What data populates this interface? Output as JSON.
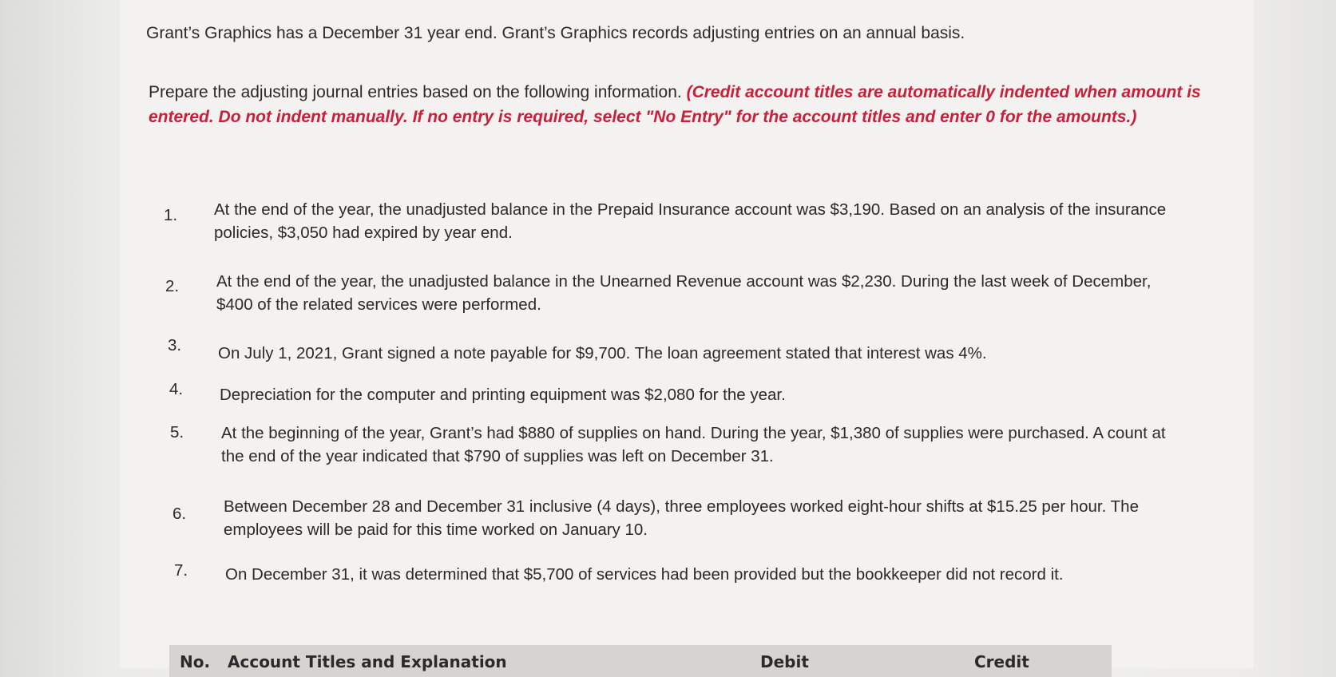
{
  "intro": "Grant’s Graphics has a December 31 year end. Grant’s Graphics records adjusting entries on an annual basis.",
  "instructions": {
    "text": "Prepare the adjusting journal entries based on the following information.",
    "note": "(Credit account titles are automatically indented when amount is entered. Do not indent manually. If no entry is required, select \"No Entry\" for the account titles and enter 0 for the amounts.)",
    "note_color": "#c8203a"
  },
  "items": [
    {
      "num": "1.",
      "text": "At the end of the year, the unadjusted balance in the Prepaid Insurance account was $3,190. Based on an analysis of the insurance policies, $3,050 had expired by year end."
    },
    {
      "num": "2.",
      "text": "At the end of the year, the unadjusted balance in the Unearned Revenue account was $2,230. During the last week of December, $400 of the related services were performed."
    },
    {
      "num": "3.",
      "text": "On July 1, 2021, Grant signed a note payable for $9,700. The loan agreement stated that interest was 4%."
    },
    {
      "num": "4.",
      "text": "Depreciation for the computer and printing equipment was $2,080 for the year."
    },
    {
      "num": "5.",
      "text": "At the beginning of the year, Grant’s had $880 of supplies on hand. During the year, $1,380 of supplies were purchased. A count at the end of the year indicated that $790 of supplies was left on December 31."
    },
    {
      "num": "6.",
      "text": "Between December 28 and December 31 inclusive (4 days), three employees worked eight-hour shifts at $15.25 per hour. The employees will be paid for this time worked on January 10."
    },
    {
      "num": "7.",
      "text": "On December 31, it was determined that $5,700 of services had been provided but the bookkeeper did not record it."
    }
  ],
  "table": {
    "col_no": "No.",
    "col_account": "Account Titles and Explanation",
    "col_debit": "Debit",
    "col_credit": "Credit"
  }
}
